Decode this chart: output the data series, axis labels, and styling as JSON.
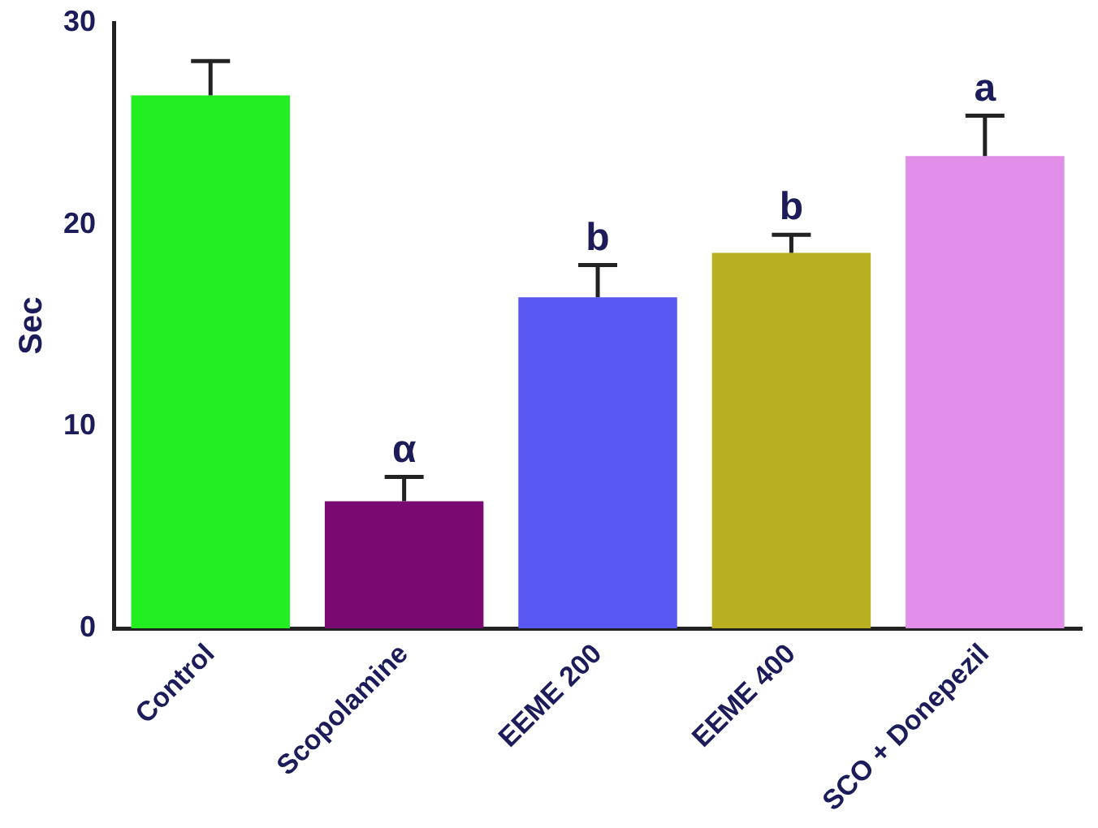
{
  "chart_data": {
    "type": "bar",
    "ylabel": "Sec",
    "categories": [
      "Control",
      "Scopolamine",
      "EEME 200",
      "EEME 400",
      "SCO + Donepezil"
    ],
    "values": [
      26.4,
      6.3,
      16.4,
      18.6,
      23.4
    ],
    "colors": [
      "#22ee22",
      "#7a0a72",
      "#5858f0",
      "#b8b020",
      "#e08ee8"
    ],
    "errors": [
      [
        26.4,
        28.1
      ],
      [
        6.3,
        7.5
      ],
      [
        16.4,
        18.0
      ],
      [
        18.6,
        19.5
      ],
      [
        23.4,
        25.4
      ]
    ],
    "ylim": [
      0,
      30
    ],
    "yticks": [
      0,
      10,
      20,
      30
    ],
    "grid": false,
    "legend": false,
    "annotations": [
      {
        "text": "α",
        "x": "Scopolamine",
        "y": 7.5
      },
      {
        "text": "b",
        "x": "EEME 200",
        "y": 18.0
      },
      {
        "text": "b",
        "x": "EEME 400",
        "y": 19.5
      },
      {
        "text": "a",
        "x": "SCO + Donepezil",
        "y": 25.4
      }
    ]
  }
}
